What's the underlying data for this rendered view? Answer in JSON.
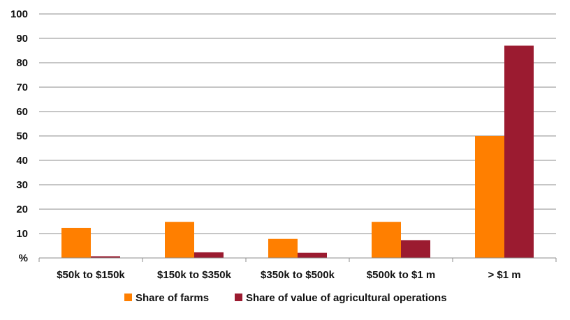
{
  "chart_data": {
    "type": "bar",
    "categories": [
      "$50k to $150k",
      "$150k to $350k",
      "$350k to $500k",
      "$500k to $1 m",
      "> $1 m"
    ],
    "series": [
      {
        "name": "Share of farms",
        "values": [
          12.3,
          14.8,
          7.8,
          14.8,
          50.0
        ],
        "color": "#FF7F00"
      },
      {
        "name": "Share of value of agricultural operations",
        "values": [
          0.7,
          2.3,
          2.1,
          7.3,
          87.0
        ],
        "color": "#9B1B30"
      }
    ],
    "title": "",
    "xlabel": "",
    "ylabel": "",
    "ylim": [
      0,
      100
    ],
    "yticks": [
      "%",
      "10",
      "20",
      "30",
      "40",
      "50",
      "60",
      "70",
      "80",
      "90",
      "100"
    ],
    "grid": true,
    "legend_position": "bottom"
  }
}
